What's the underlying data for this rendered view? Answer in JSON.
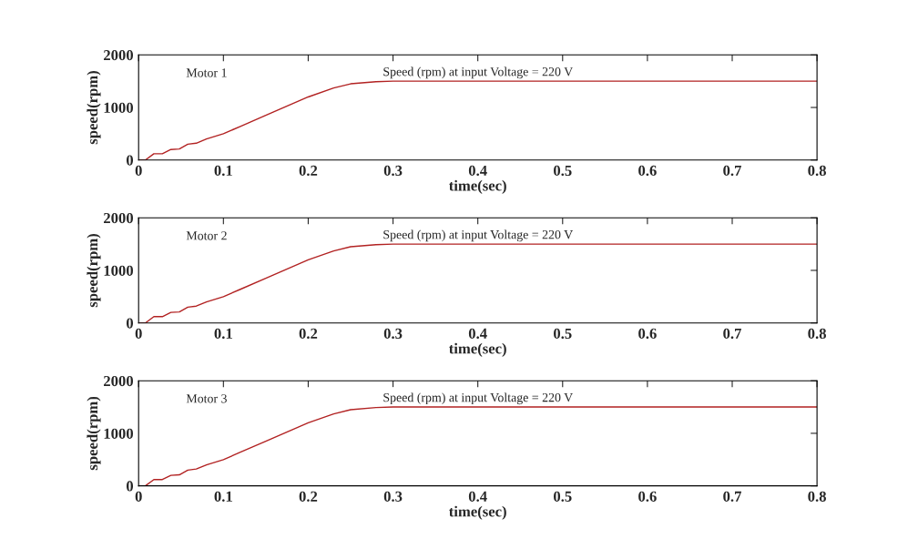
{
  "chart_data": [
    {
      "type": "line",
      "xlabel": "time(sec)",
      "ylabel": "speed(rpm)",
      "annotations": [
        "Motor 1",
        "Speed (rpm) at input Voltage = 220 V"
      ],
      "x": [
        0,
        0.008,
        0.018,
        0.028,
        0.038,
        0.048,
        0.058,
        0.068,
        0.08,
        0.1,
        0.12,
        0.15,
        0.2,
        0.23,
        0.25,
        0.28,
        0.3,
        0.8
      ],
      "series": [
        {
          "color": "#b22222",
          "values": [
            0,
            0,
            120,
            120,
            200,
            210,
            300,
            320,
            400,
            500,
            640,
            850,
            1200,
            1370,
            1450,
            1490,
            1500,
            1500
          ]
        }
      ],
      "xlim": [
        0,
        0.8
      ],
      "ylim": [
        0,
        2000
      ],
      "xticks": [
        0,
        0.1,
        0.2,
        0.3,
        0.4,
        0.5,
        0.6,
        0.7,
        0.8
      ],
      "yticks": [
        0,
        1000,
        2000
      ],
      "grid": false,
      "legend": false
    },
    {
      "type": "line",
      "xlabel": "time(sec)",
      "ylabel": "speed(rpm)",
      "annotations": [
        "Motor 2",
        "Speed (rpm) at input Voltage = 220 V"
      ],
      "x": [
        0,
        0.008,
        0.018,
        0.028,
        0.038,
        0.048,
        0.058,
        0.068,
        0.08,
        0.1,
        0.12,
        0.15,
        0.2,
        0.23,
        0.25,
        0.28,
        0.3,
        0.8
      ],
      "series": [
        {
          "color": "#b22222",
          "values": [
            0,
            0,
            120,
            120,
            200,
            210,
            300,
            320,
            400,
            500,
            640,
            850,
            1200,
            1370,
            1450,
            1490,
            1500,
            1500
          ]
        }
      ],
      "xlim": [
        0,
        0.8
      ],
      "ylim": [
        0,
        2000
      ],
      "xticks": [
        0,
        0.1,
        0.2,
        0.3,
        0.4,
        0.5,
        0.6,
        0.7,
        0.8
      ],
      "yticks": [
        0,
        1000,
        2000
      ],
      "grid": false,
      "legend": false
    },
    {
      "type": "line",
      "xlabel": "time(sec)",
      "ylabel": "speed(rpm)",
      "annotations": [
        "Motor 3",
        "Speed (rpm) at input Voltage = 220 V"
      ],
      "x": [
        0,
        0.008,
        0.018,
        0.028,
        0.038,
        0.048,
        0.058,
        0.068,
        0.08,
        0.1,
        0.12,
        0.15,
        0.2,
        0.23,
        0.25,
        0.28,
        0.3,
        0.8
      ],
      "series": [
        {
          "color": "#b22222",
          "values": [
            0,
            0,
            120,
            120,
            200,
            210,
            300,
            320,
            400,
            500,
            640,
            850,
            1200,
            1370,
            1450,
            1490,
            1500,
            1500
          ]
        }
      ],
      "xlim": [
        0,
        0.8
      ],
      "ylim": [
        0,
        2000
      ],
      "xticks": [
        0,
        0.1,
        0.2,
        0.3,
        0.4,
        0.5,
        0.6,
        0.7,
        0.8
      ],
      "yticks": [
        0,
        1000,
        2000
      ],
      "grid": false,
      "legend": false
    }
  ]
}
